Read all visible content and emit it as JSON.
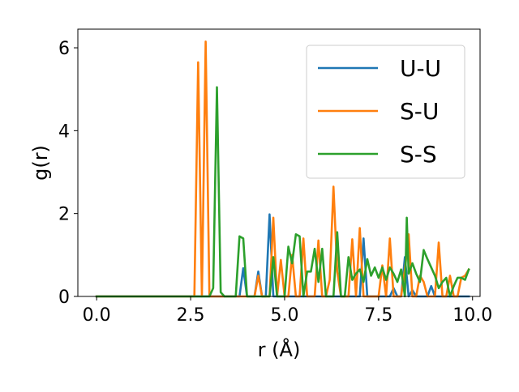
{
  "chart_data": {
    "type": "line",
    "xlabel": "r (Å)",
    "ylabel": "g(r)",
    "xlim": [
      -0.5,
      10.2
    ],
    "ylim": [
      0,
      6.45
    ],
    "xticks": [
      0.0,
      2.5,
      5.0,
      7.5,
      10.0
    ],
    "xtick_labels": [
      "0.0",
      "2.5",
      "5.0",
      "7.5",
      "10.0"
    ],
    "yticks": [
      0,
      2,
      4,
      6
    ],
    "ytick_labels": [
      "0",
      "2",
      "4",
      "6"
    ],
    "grid": false,
    "legend_position": "top-right",
    "series": [
      {
        "name": "U-U",
        "color": "#1f77b4",
        "points": [
          [
            0.0,
            0
          ],
          [
            3.8,
            0
          ],
          [
            3.9,
            0.68
          ],
          [
            4.0,
            0
          ],
          [
            4.2,
            0
          ],
          [
            4.3,
            0.6
          ],
          [
            4.4,
            0
          ],
          [
            4.5,
            0
          ],
          [
            4.6,
            1.98
          ],
          [
            4.7,
            0
          ],
          [
            7.0,
            0
          ],
          [
            7.1,
            1.4
          ],
          [
            7.2,
            0
          ],
          [
            7.8,
            0
          ],
          [
            7.9,
            0.2
          ],
          [
            8.0,
            0
          ],
          [
            8.1,
            0
          ],
          [
            8.2,
            0.95
          ],
          [
            8.3,
            0
          ],
          [
            8.4,
            0.15
          ],
          [
            8.5,
            0
          ],
          [
            8.8,
            0
          ],
          [
            8.9,
            0.25
          ],
          [
            9.0,
            0
          ],
          [
            9.9,
            0
          ]
        ]
      },
      {
        "name": "S-U",
        "color": "#ff7f0e",
        "points": [
          [
            0.0,
            0
          ],
          [
            2.6,
            0
          ],
          [
            2.7,
            5.65
          ],
          [
            2.8,
            0
          ],
          [
            2.9,
            6.15
          ],
          [
            3.0,
            0
          ],
          [
            4.2,
            0
          ],
          [
            4.3,
            0.5
          ],
          [
            4.4,
            0
          ],
          [
            4.6,
            0
          ],
          [
            4.7,
            1.9
          ],
          [
            4.8,
            0
          ],
          [
            4.9,
            0.88
          ],
          [
            5.0,
            0
          ],
          [
            5.1,
            0
          ],
          [
            5.2,
            1.0
          ],
          [
            5.3,
            0
          ],
          [
            5.4,
            0
          ],
          [
            5.5,
            1.4
          ],
          [
            5.6,
            0
          ],
          [
            5.8,
            0
          ],
          [
            5.9,
            1.35
          ],
          [
            6.0,
            0
          ],
          [
            6.1,
            0
          ],
          [
            6.2,
            0.4
          ],
          [
            6.3,
            2.65
          ],
          [
            6.4,
            0.6
          ],
          [
            6.5,
            0
          ],
          [
            6.7,
            0
          ],
          [
            6.8,
            1.38
          ],
          [
            6.9,
            0
          ],
          [
            7.0,
            1.65
          ],
          [
            7.1,
            0
          ],
          [
            7.5,
            0
          ],
          [
            7.6,
            0.75
          ],
          [
            7.7,
            0
          ],
          [
            7.8,
            1.4
          ],
          [
            7.9,
            0
          ],
          [
            8.1,
            0
          ],
          [
            8.2,
            0.65
          ],
          [
            8.3,
            1.5
          ],
          [
            8.4,
            0
          ],
          [
            8.5,
            0
          ],
          [
            8.6,
            0.5
          ],
          [
            8.7,
            0.35
          ],
          [
            8.8,
            0
          ],
          [
            9.0,
            0
          ],
          [
            9.1,
            1.3
          ],
          [
            9.2,
            0
          ],
          [
            9.3,
            0
          ],
          [
            9.4,
            0.5
          ],
          [
            9.5,
            0
          ],
          [
            9.6,
            0
          ],
          [
            9.7,
            0.45
          ],
          [
            9.8,
            0.5
          ],
          [
            9.9,
            0.65
          ]
        ]
      },
      {
        "name": "S-S",
        "color": "#2ca02c",
        "points": [
          [
            0.0,
            0
          ],
          [
            3.0,
            0
          ],
          [
            3.1,
            0.2
          ],
          [
            3.2,
            5.05
          ],
          [
            3.3,
            0.1
          ],
          [
            3.4,
            0
          ],
          [
            3.7,
            0
          ],
          [
            3.8,
            1.45
          ],
          [
            3.9,
            1.4
          ],
          [
            4.0,
            0
          ],
          [
            4.6,
            0
          ],
          [
            4.7,
            0.95
          ],
          [
            4.8,
            0
          ],
          [
            5.0,
            0
          ],
          [
            5.1,
            1.2
          ],
          [
            5.2,
            0.8
          ],
          [
            5.3,
            1.5
          ],
          [
            5.4,
            1.45
          ],
          [
            5.5,
            0
          ],
          [
            5.6,
            0.6
          ],
          [
            5.7,
            0.6
          ],
          [
            5.8,
            1.15
          ],
          [
            5.9,
            0.35
          ],
          [
            6.0,
            1.15
          ],
          [
            6.1,
            0
          ],
          [
            6.3,
            0
          ],
          [
            6.4,
            1.55
          ],
          [
            6.5,
            0
          ],
          [
            6.6,
            0
          ],
          [
            6.7,
            0.95
          ],
          [
            6.8,
            0.4
          ],
          [
            6.9,
            0.55
          ],
          [
            7.0,
            0.65
          ],
          [
            7.1,
            0.35
          ],
          [
            7.2,
            0.9
          ],
          [
            7.3,
            0.5
          ],
          [
            7.4,
            0.7
          ],
          [
            7.5,
            0.45
          ],
          [
            7.6,
            0.7
          ],
          [
            7.7,
            0.4
          ],
          [
            7.8,
            0.7
          ],
          [
            7.9,
            0.55
          ],
          [
            8.0,
            0.35
          ],
          [
            8.1,
            0.65
          ],
          [
            8.2,
            0
          ],
          [
            8.25,
            1.9
          ],
          [
            8.3,
            0.55
          ],
          [
            8.4,
            0.8
          ],
          [
            8.5,
            0.55
          ],
          [
            8.6,
            0.35
          ],
          [
            8.7,
            1.12
          ],
          [
            8.8,
            0.9
          ],
          [
            8.9,
            0.7
          ],
          [
            9.0,
            0.5
          ],
          [
            9.1,
            0.2
          ],
          [
            9.2,
            0.35
          ],
          [
            9.3,
            0.45
          ],
          [
            9.4,
            0
          ],
          [
            9.5,
            0.25
          ],
          [
            9.6,
            0.45
          ],
          [
            9.7,
            0.45
          ],
          [
            9.8,
            0.4
          ],
          [
            9.9,
            0.65
          ]
        ]
      }
    ]
  }
}
